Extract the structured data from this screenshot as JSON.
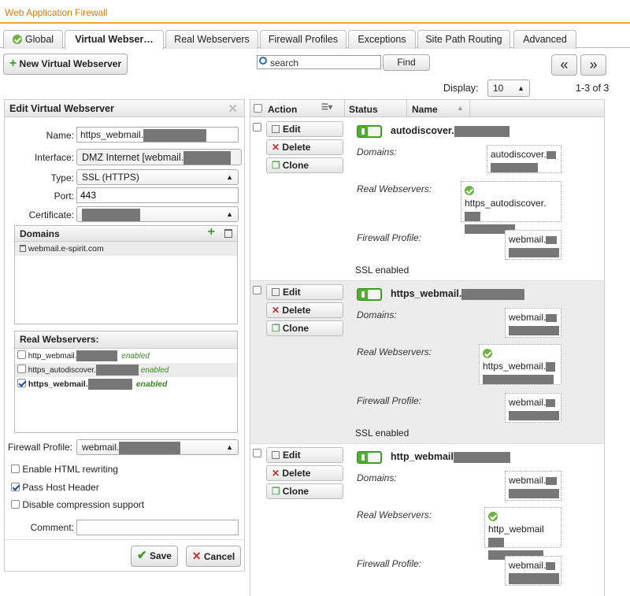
{
  "app_title": "Web Application Firewall",
  "tabs": [
    {
      "label": "Global"
    },
    {
      "label": "Virtual Webser…"
    },
    {
      "label": "Real Webservers"
    },
    {
      "label": "Firewall Profiles"
    },
    {
      "label": "Exceptions"
    },
    {
      "label": "Site Path Routing"
    },
    {
      "label": "Advanced"
    }
  ],
  "toolbar": {
    "new_button": "New Virtual Webserver",
    "search_placeholder": "search",
    "find_button": "Find",
    "prev_button": "«",
    "next_button": "»",
    "display_label": "Display:",
    "display_value": "10",
    "range": "1-3 of 3"
  },
  "edit_panel": {
    "title": "Edit Virtual Webserver",
    "name_label": "Name:",
    "name_value": "https_webmail.",
    "interface_label": "Interface:",
    "interface_value": "DMZ Internet [webmail.",
    "type_label": "Type:",
    "type_value": "SSL (HTTPS)",
    "port_label": "Port:",
    "port_value": "443",
    "certificate_label": "Certificate:",
    "domains_title": "Domains",
    "domains": [
      "webmail.e-spirit.com"
    ],
    "real_title": "Real Webservers:",
    "real_items": [
      {
        "name": "http_webmail.",
        "status": "enabled",
        "checked": false
      },
      {
        "name": "https_autodiscover.",
        "status": "enabled",
        "checked": false
      },
      {
        "name": "https_webmail.",
        "status": "enabled",
        "checked": true
      }
    ],
    "firewall_label": "Firewall Profile:",
    "firewall_value": "webmail.",
    "opt_html": "Enable HTML rewriting",
    "opt_host": "Pass Host Header",
    "opt_compress": "Disable compression support",
    "comment_label": "Comment:",
    "save": "Save",
    "cancel": "Cancel"
  },
  "list": {
    "col_action": "Action",
    "col_status": "Status",
    "col_name": "Name",
    "btn_edit": "Edit",
    "btn_delete": "Delete",
    "btn_clone": "Clone",
    "lbl_domains": "Domains:",
    "lbl_real": "Real Webservers:",
    "lbl_firewall": "Firewall Profile:",
    "rows": [
      {
        "name": "autodiscover.",
        "domain": "autodiscover.",
        "real": "https_autodiscover.",
        "firewall": "webmail.",
        "ssl": "SSL enabled"
      },
      {
        "name": "https_webmail.",
        "domain": "webmail.",
        "real": "https_webmail.",
        "firewall": "webmail.",
        "ssl": "SSL enabled"
      },
      {
        "name": "http_webmail",
        "domain": "webmail.",
        "real": "http_webmail",
        "firewall": "webmail.",
        "ssl": ""
      }
    ]
  }
}
